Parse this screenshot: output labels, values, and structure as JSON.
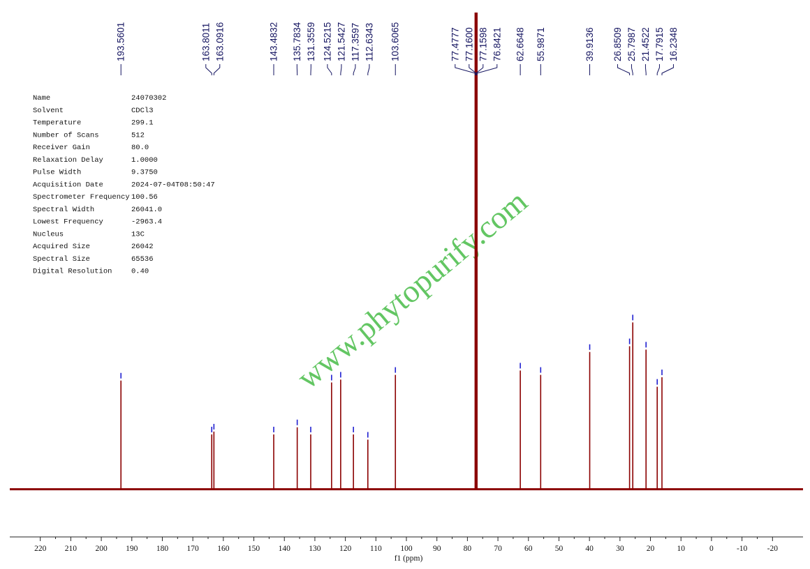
{
  "chart_data": {
    "type": "spectrum",
    "xlabel": "f1 (ppm)",
    "xlim": [
      230,
      -30
    ],
    "xticks": [
      220,
      210,
      200,
      190,
      180,
      170,
      160,
      150,
      140,
      130,
      120,
      110,
      100,
      90,
      80,
      70,
      60,
      50,
      40,
      30,
      20,
      10,
      0,
      -10,
      -20
    ],
    "ylim": [
      -10,
      100
    ],
    "color": "#8b0000",
    "marker_color": "#1f1fd0",
    "x": [
      193.5601,
      163.8011,
      163.0916,
      143.4832,
      135.7834,
      131.3559,
      124.5215,
      121.5427,
      117.3597,
      112.6343,
      103.6065,
      77.4777,
      77.16,
      77.1598,
      76.8421,
      62.6648,
      55.9871,
      39.9136,
      26.8509,
      25.7987,
      21.4522,
      17.7915,
      16.2348
    ],
    "x_labels": [
      "193.5601",
      "163.8011",
      "163.0916",
      "143.4832",
      "135.7834",
      "131.3559",
      "124.5215",
      "121.5427",
      "117.3597",
      "112.6343",
      "103.6065",
      "77.4777",
      "77.1600",
      "77.1598",
      "76.8421",
      "62.6648",
      "55.9871",
      "39.9136",
      "26.8509",
      "25.7987",
      "21.4522",
      "17.7915",
      "16.2348"
    ],
    "values": [
      22.8,
      11.5,
      12.1,
      11.5,
      13,
      11.5,
      22.4,
      23,
      11.5,
      10.4,
      24,
      100,
      100,
      100,
      100,
      24.9,
      24,
      28.8,
      30,
      35,
      29.3,
      21.5,
      23.5
    ],
    "parameters": {
      "names": [
        "Name",
        "Solvent",
        "Temperature",
        "Number of Scans",
        "Receiver Gain",
        "Relaxation Delay",
        "Pulse Width",
        "Acquisition Date",
        "Spectrometer Frequency",
        "Spectral Width",
        "Lowest Frequency",
        "Nucleus",
        "Acquired Size",
        "Spectral Size",
        "Digital Resolution"
      ],
      "values": [
        "24070302",
        "CDCl3",
        "299.1",
        "512",
        "80.0",
        "1.0000",
        "9.3750",
        "2024-07-04T08:50:47",
        "100.56",
        "26041.0",
        "-2963.4",
        "13C",
        "26042",
        "65536",
        "0.40"
      ]
    },
    "watermark": "www.phytopurify.com"
  }
}
